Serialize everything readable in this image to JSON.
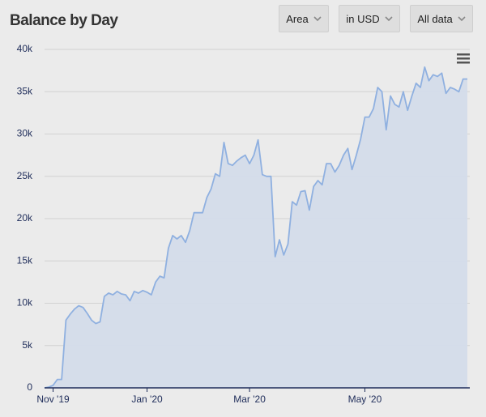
{
  "controls": [
    "Area",
    "in USD",
    "All data"
  ],
  "chart_data": {
    "type": "area",
    "title": "Balance by Day",
    "categories": [
      null,
      null,
      "Nov '19",
      null,
      null,
      null,
      null,
      null,
      null,
      null,
      null,
      null,
      null,
      null,
      null,
      null,
      null,
      null,
      null,
      null,
      null,
      null,
      null,
      null,
      "Jan '20",
      null,
      null,
      null,
      null,
      null,
      null,
      null,
      null,
      null,
      null,
      null,
      null,
      null,
      null,
      null,
      null,
      null,
      null,
      null,
      null,
      null,
      null,
      null,
      "Mar '20",
      null,
      null,
      null,
      null,
      null,
      null,
      null,
      null,
      null,
      null,
      null,
      null,
      null,
      null,
      null,
      null,
      null,
      null,
      null,
      null,
      null,
      null,
      null,
      null,
      null,
      null,
      "May '20",
      null,
      null,
      null,
      null,
      null,
      null,
      null,
      null,
      null,
      null,
      null,
      null,
      null,
      null,
      null,
      null,
      null,
      null,
      null,
      null,
      null,
      null,
      null,
      null
    ],
    "series": [
      {
        "name": "Balance",
        "color": "#8fb0e0",
        "fill": "#d4dcea",
        "values": [
          0,
          100,
          300,
          1000,
          1000,
          8000,
          8700,
          9300,
          9700,
          9500,
          8800,
          8000,
          7600,
          7800,
          10800,
          11200,
          11000,
          11400,
          11100,
          11000,
          10300,
          11400,
          11200,
          11500,
          11300,
          11000,
          12500,
          13200,
          13000,
          16500,
          18000,
          17600,
          18000,
          17200,
          18600,
          20700,
          20700,
          20700,
          22500,
          23500,
          25300,
          25000,
          29000,
          26500,
          26300,
          26800,
          27200,
          27500,
          26500,
          27500,
          29300,
          25200,
          25000,
          25000,
          15500,
          17500,
          15700,
          17000,
          22000,
          21600,
          23200,
          23300,
          21000,
          23800,
          24500,
          24000,
          26500,
          26500,
          25500,
          26300,
          27500,
          28300,
          25800,
          27500,
          29400,
          32000,
          32000,
          33000,
          35500,
          35000,
          30500,
          34500,
          33500,
          33200,
          35000,
          32800,
          34500,
          36000,
          35500,
          37900,
          36300,
          37000,
          36800,
          37200,
          34800,
          35500,
          35300,
          35000,
          36500,
          36500
        ]
      }
    ],
    "ylim": [
      0,
      40000
    ],
    "yticks": [
      0,
      {
        "value": 5000,
        "label": "5k"
      },
      {
        "value": 10000,
        "label": "10k"
      },
      {
        "value": 15000,
        "label": "15k"
      },
      {
        "value": 20000,
        "label": "20k"
      },
      {
        "value": 25000,
        "label": "25k"
      },
      {
        "value": 30000,
        "label": "30k"
      },
      {
        "value": 35000,
        "label": "35k"
      },
      {
        "value": 40000,
        "label": "40k"
      }
    ],
    "grid": true
  }
}
